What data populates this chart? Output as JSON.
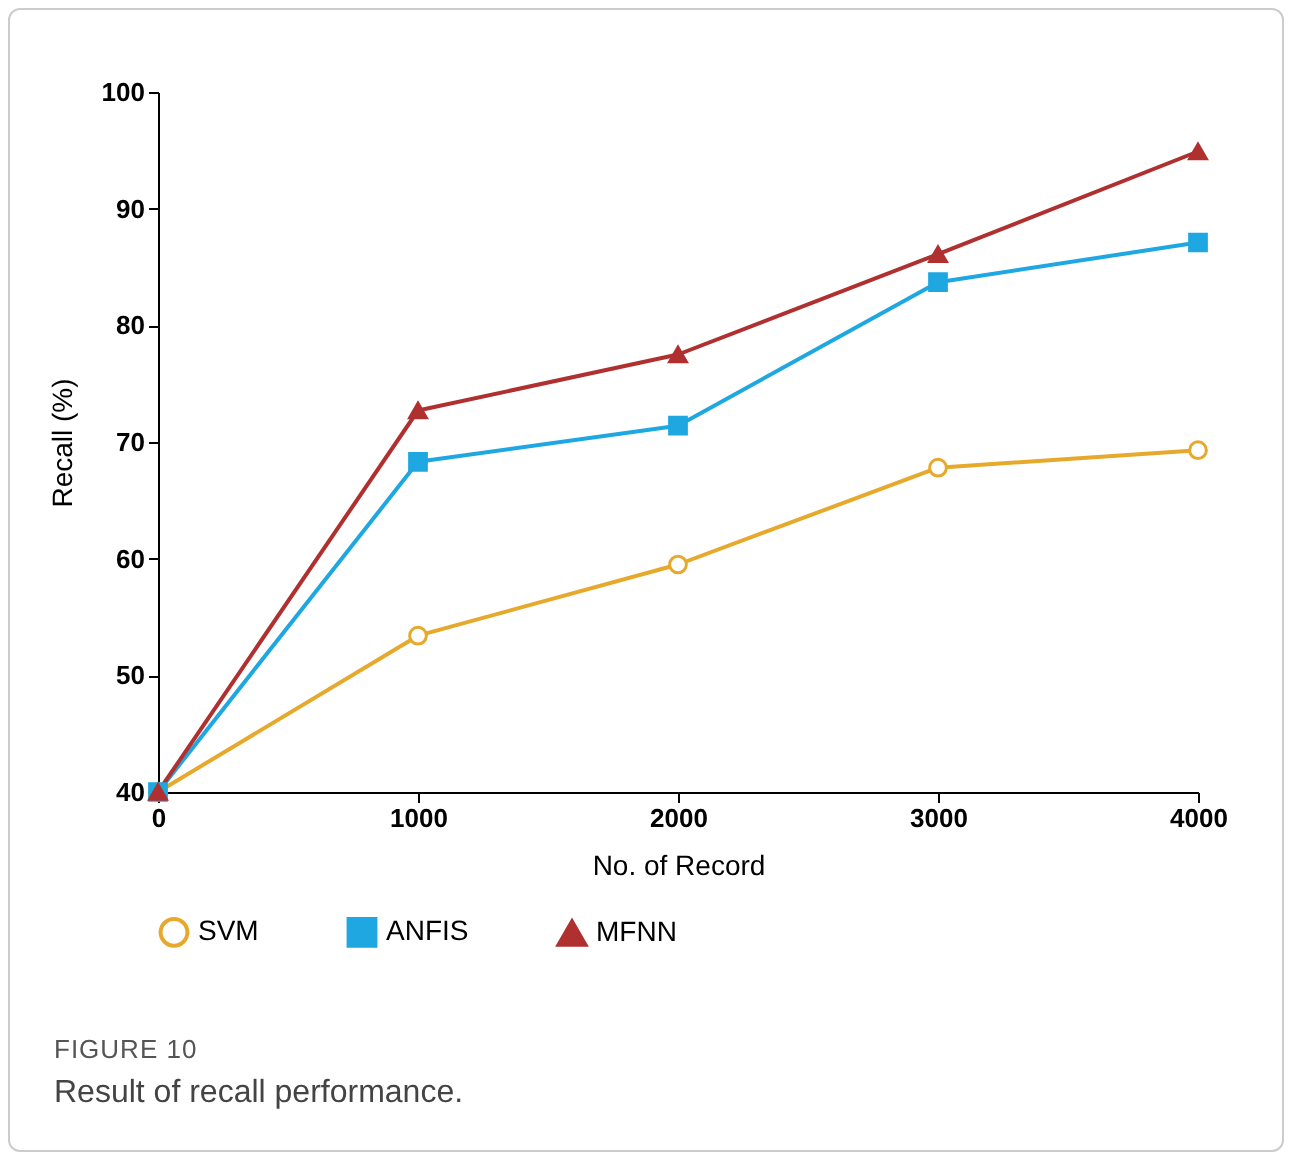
{
  "chart_data": {
    "type": "line",
    "xlabel": "No. of Record",
    "ylabel": "Recall (%)",
    "x": [
      0,
      1000,
      2000,
      3000,
      4000
    ],
    "xlim": [
      0,
      4000
    ],
    "xticks": [
      0,
      1000,
      2000,
      3000,
      4000
    ],
    "ylim": [
      40,
      100
    ],
    "yticks": [
      40,
      50,
      60,
      70,
      80,
      90,
      100
    ],
    "grid": false,
    "legend": "bottom",
    "series": [
      {
        "name": "SVM",
        "color": "#e6a92b",
        "marker": "circle",
        "values": [
          40,
          53.4,
          59.5,
          67.8,
          69.3
        ]
      },
      {
        "name": "ANFIS",
        "color": "#1ea7e1",
        "marker": "square",
        "values": [
          40,
          68.3,
          71.4,
          83.7,
          87.1
        ]
      },
      {
        "name": "MFNN",
        "color": "#b03030",
        "marker": "triangle",
        "values": [
          40,
          72.7,
          77.5,
          86.1,
          94.9
        ]
      }
    ],
    "annotations": [
      "FIGURE 10",
      "Result of recall performance."
    ]
  }
}
